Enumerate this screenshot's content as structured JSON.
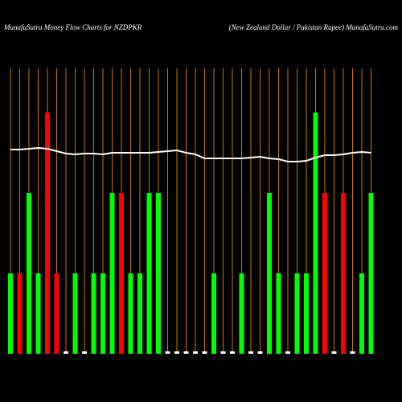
{
  "chart_data": {
    "type": "bar",
    "title": "MunafaSutra  Money Flow  Charts for NZDPKR",
    "subtitle": "(New  Zealand Dollar / Pakistan  Rupee) MunafaSutra.com",
    "categories": [
      null,
      null,
      null,
      null,
      null,
      null,
      null,
      null,
      null,
      null,
      null,
      null,
      null,
      null,
      null,
      null,
      null,
      null,
      null,
      null,
      null,
      null,
      null,
      null,
      null,
      null,
      null,
      null,
      null,
      null,
      null,
      null,
      null,
      null,
      null,
      null,
      null,
      null,
      null,
      null
    ],
    "values": [
      1,
      1,
      2,
      1,
      3,
      1,
      0.03,
      1,
      0.03,
      1,
      1,
      2,
      2,
      1,
      1,
      2,
      2,
      0.03,
      0.03,
      0.03,
      0.03,
      0.03,
      1,
      0.03,
      0.03,
      1,
      0.03,
      0.03,
      2,
      1,
      0.03,
      1,
      1,
      3,
      2,
      0.03,
      2,
      0.03,
      1,
      2
    ],
    "colors": [
      "#00ff00",
      "#ff0000",
      "#00ff00",
      "#00ff00",
      "#ff0000",
      "#ff0000",
      "#ffffff",
      "#00ff00",
      "#ffffff",
      "#00ff00",
      "#00ff00",
      "#00ff00",
      "#ff0000",
      "#00ff00",
      "#00ff00",
      "#00ff00",
      "#00ff00",
      "#ffffff",
      "#ffffff",
      "#ffffff",
      "#ffffff",
      "#ffffff",
      "#00ff00",
      "#ffffff",
      "#ffffff",
      "#00ff00",
      "#ffffff",
      "#ffffff",
      "#00ff00",
      "#00ff00",
      "#ffffff",
      "#00ff00",
      "#00ff00",
      "#00ff00",
      "#ff0000",
      "#ffffff",
      "#ff0000",
      "#ffffff",
      "#00ff00",
      "#00ff00"
    ],
    "line": {
      "color": "#ffffff",
      "values": [
        2.54,
        2.54,
        2.55,
        2.56,
        2.55,
        2.52,
        2.49,
        2.48,
        2.49,
        2.49,
        2.48,
        2.5,
        2.5,
        2.5,
        2.5,
        2.5,
        2.51,
        2.52,
        2.53,
        2.5,
        2.48,
        2.43,
        2.43,
        2.43,
        2.43,
        2.43,
        2.44,
        2.45,
        2.43,
        2.42,
        2.39,
        2.39,
        2.4,
        2.44,
        2.47,
        2.47,
        2.48,
        2.5,
        2.51,
        2.5
      ]
    },
    "grid_color": "#c87800",
    "ylim": [
      0,
      4
    ]
  }
}
